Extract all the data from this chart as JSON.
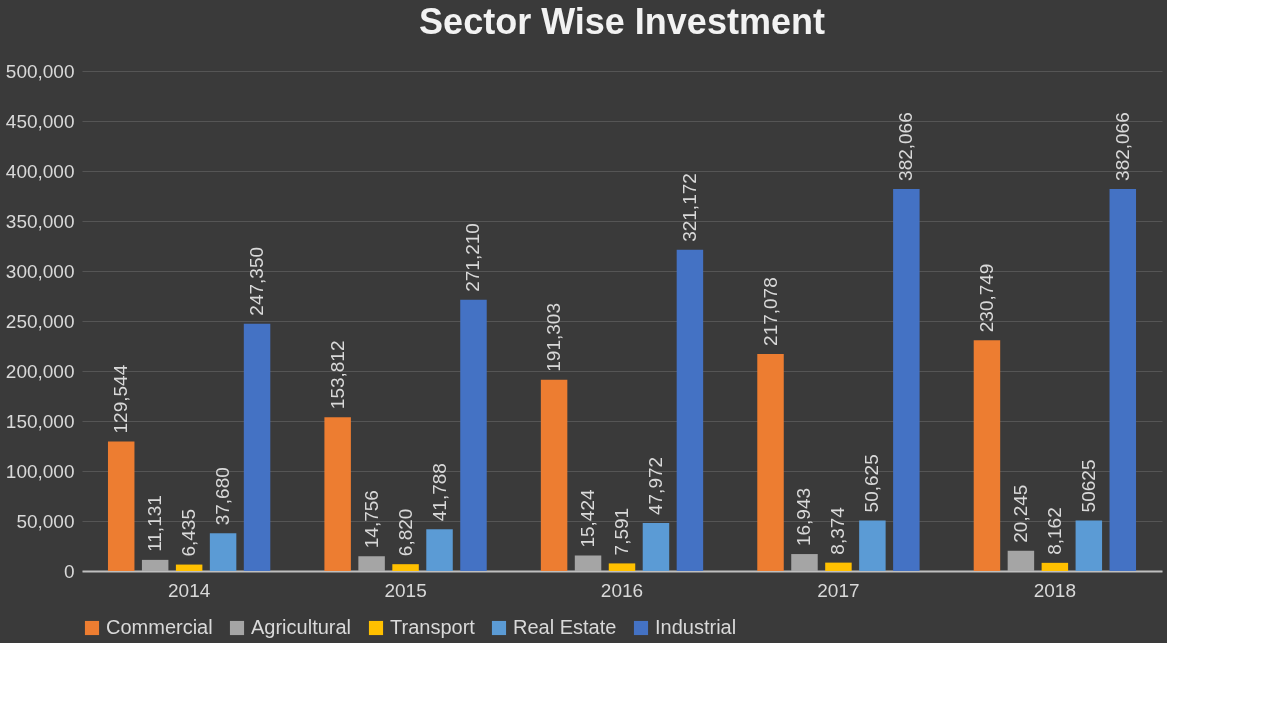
{
  "chart_data": {
    "type": "bar",
    "title": "Sector Wise Investment",
    "categories": [
      "2014",
      "2015",
      "2016",
      "2017",
      "2018"
    ],
    "series": [
      {
        "name": "Commercial",
        "color": "#ed7d31",
        "values": [
          129544,
          153812,
          191303,
          217078,
          230749
        ],
        "value_labels": [
          "129,544",
          "153,812",
          "191,303",
          "217,078",
          "230,749"
        ]
      },
      {
        "name": "Agricultural",
        "color": "#a5a5a5",
        "values": [
          11131,
          14756,
          15424,
          16943,
          20245
        ],
        "value_labels": [
          "11,131",
          "14,756",
          "15,424",
          "16,943",
          "20,245"
        ]
      },
      {
        "name": "Transport",
        "color": "#ffc000",
        "values": [
          6435,
          6820,
          7591,
          8374,
          8162
        ],
        "value_labels": [
          "6,435",
          "6,820",
          "7,591",
          "8,374",
          "8,162"
        ]
      },
      {
        "name": "Real Estate",
        "color": "#5b9bd5",
        "values": [
          37680,
          41788,
          47972,
          50625,
          50625
        ],
        "value_labels": [
          "37,680",
          "41,788",
          "47,972",
          "50,625",
          "50625"
        ]
      },
      {
        "name": "Industrial",
        "color": "#4472c4",
        "values": [
          247350,
          271210,
          321172,
          382066,
          382066
        ],
        "value_labels": [
          "247,350",
          "271,210",
          "321,172",
          "382,066",
          "382,066"
        ]
      }
    ],
    "ylim": [
      0,
      500000
    ],
    "yticks": [
      0,
      {
        "value": 50000,
        "label": "50,000"
      },
      {
        "value": 100000,
        "label": "100,000"
      },
      {
        "value": 150000,
        "label": "150,000"
      },
      {
        "value": 200000,
        "label": "200,000"
      },
      {
        "value": 250000,
        "label": "250,000"
      },
      {
        "value": 300000,
        "label": "300,000"
      },
      {
        "value": 350000,
        "label": "350,000"
      },
      {
        "value": 400000,
        "label": "400,000"
      },
      {
        "value": 450000,
        "label": "450,000"
      },
      {
        "value": 500000,
        "label": "500,000"
      }
    ],
    "grid": "y",
    "legend": "bottom"
  }
}
